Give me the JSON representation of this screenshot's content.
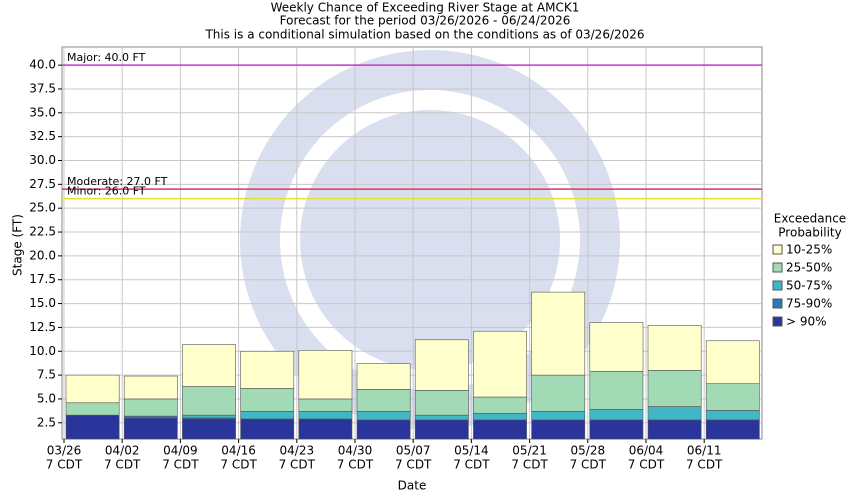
{
  "chart_data": {
    "type": "floating-bar",
    "title": "Weekly Chance of Exceeding River Stage at AMCK1",
    "subtitle": "Forecast for the period 03/26/2026 - 06/24/2026",
    "note": "This is a conditional simulation based on the conditions as of 03/26/2026",
    "y_label": "Stage (FT)",
    "x_label": "Date",
    "categories": [
      "03/26",
      "04/02",
      "04/09",
      "04/16",
      "04/23",
      "04/30",
      "05/07",
      "05/14",
      "05/21",
      "05/28",
      "06/04",
      "06/11"
    ],
    "x_tick_sublabel": "7 CDT",
    "legend_title": [
      "Exceedance",
      "Probability"
    ],
    "series": [
      {
        "name": "> 90%",
        "color": "#29359a",
        "values": [
          3.3,
          3.0,
          2.9,
          2.9,
          2.9,
          2.8,
          2.8,
          2.8,
          2.8,
          2.8,
          2.8,
          2.8
        ]
      },
      {
        "name": "75-90%",
        "color": "#2b7bb9",
        "values": [
          3.3,
          3.2,
          3.0,
          2.9,
          2.9,
          2.8,
          2.8,
          2.8,
          2.8,
          2.8,
          2.8,
          2.8
        ]
      },
      {
        "name": "50-75%",
        "color": "#41b6c4",
        "values": [
          3.3,
          3.2,
          3.3,
          3.7,
          3.7,
          3.7,
          3.3,
          3.5,
          3.7,
          3.9,
          4.2,
          3.8
        ]
      },
      {
        "name": "25-50%",
        "color": "#a1dab4",
        "values": [
          4.6,
          5.0,
          6.3,
          6.1,
          5.0,
          6.0,
          5.9,
          5.2,
          7.5,
          7.9,
          8.0,
          6.6
        ]
      },
      {
        "name": "10-25%",
        "color": "#ffffcc",
        "values": [
          7.5,
          7.4,
          10.7,
          10.0,
          10.1,
          8.7,
          11.2,
          12.1,
          16.2,
          13.0,
          12.7,
          11.1
        ]
      }
    ],
    "thresholds": [
      {
        "label": "Major: 40.0 FT",
        "value": 40,
        "color": "#cc33cc"
      },
      {
        "label": "Moderate: 27.0 FT",
        "value": 27,
        "color": "#dd3366"
      },
      {
        "label": "Minor: 26.0 FT",
        "value": 26,
        "color": "#e8e030"
      }
    ],
    "ylim": [
      0.8,
      41.9
    ],
    "yticks": [
      2.5,
      {
        "value": 5,
        "label": "5.0"
      },
      7.5,
      {
        "value": 10,
        "label": "10.0"
      },
      12.5,
      {
        "value": 15,
        "label": "15.0"
      },
      17.5,
      {
        "value": 20,
        "label": "20.0"
      },
      22.5,
      {
        "value": 25,
        "label": "25.0"
      },
      27.5,
      {
        "value": 30,
        "label": "30.0"
      },
      32.5,
      {
        "value": 35,
        "label": "35.0"
      },
      37.5,
      {
        "value": 40,
        "label": "40.0"
      }
    ],
    "grid": true
  }
}
